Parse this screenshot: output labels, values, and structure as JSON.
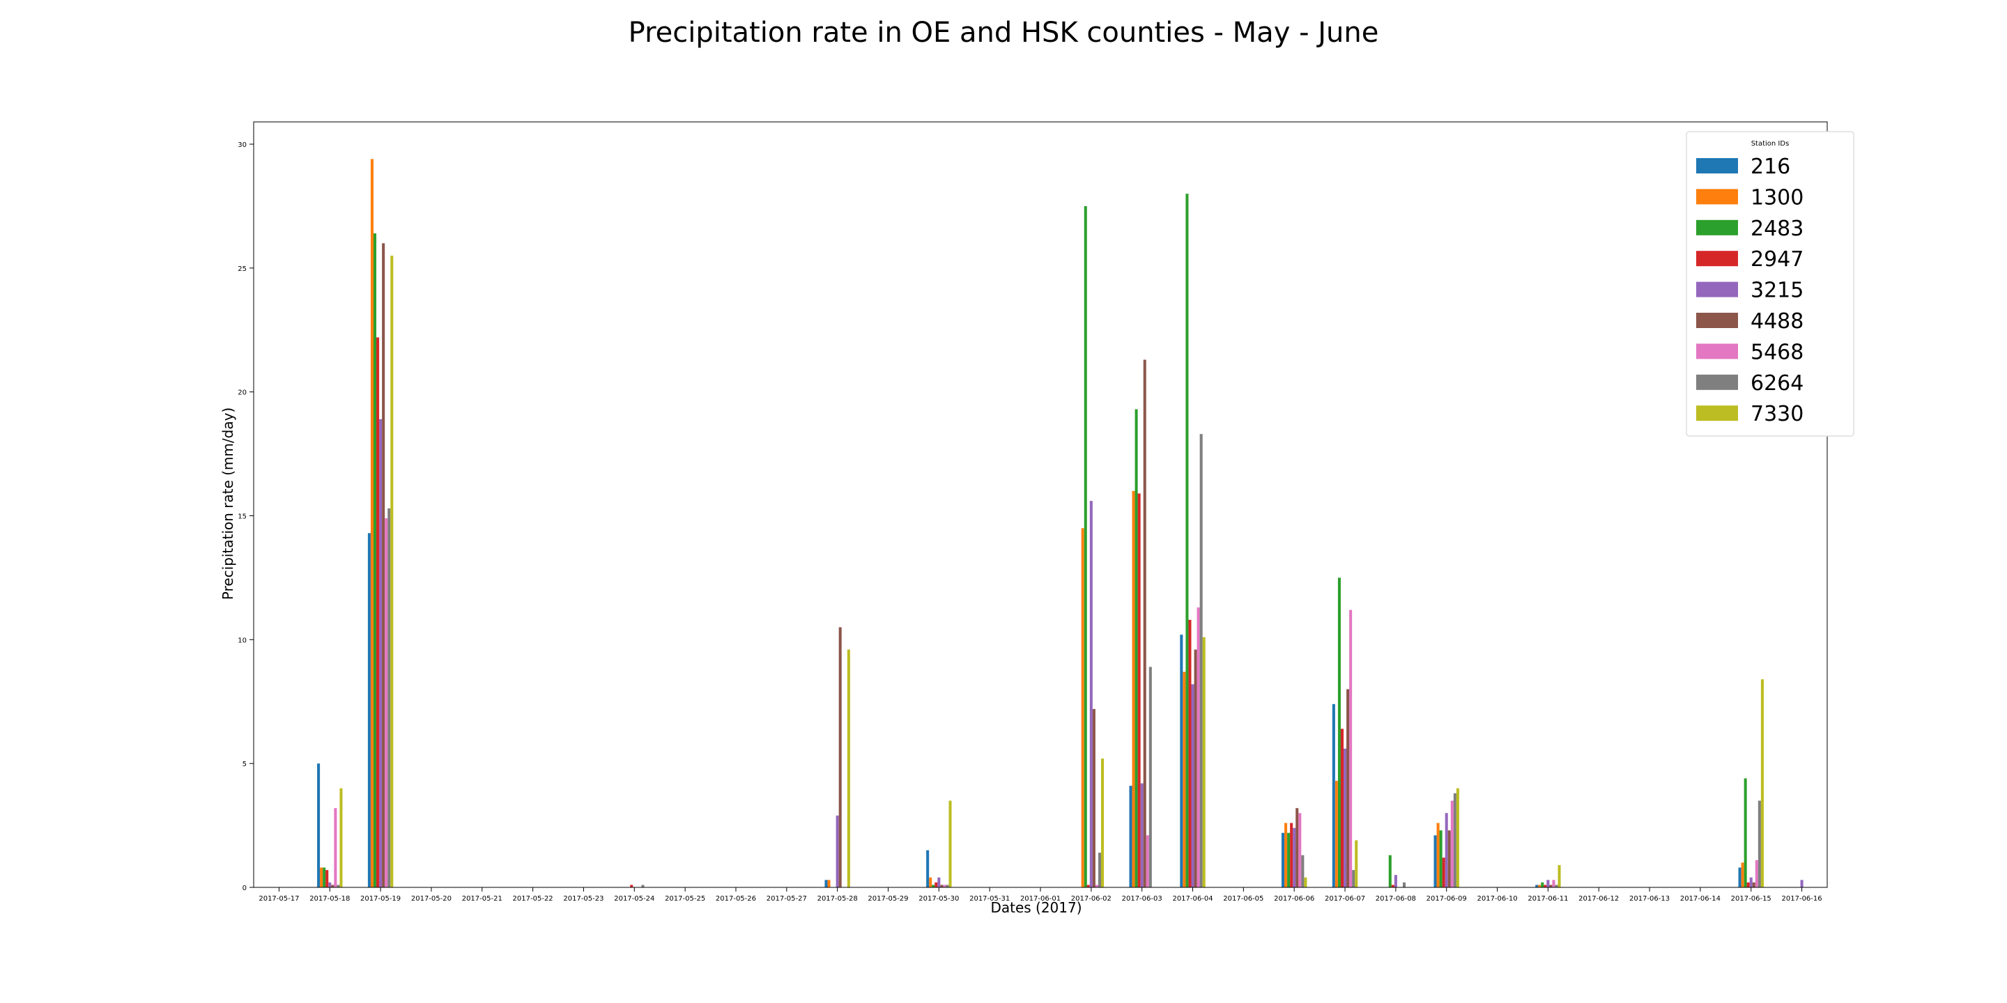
{
  "chart_data": {
    "type": "bar",
    "title": "Precipitation rate in OE and HSK counties - May - June",
    "xlabel": "Dates (2017)",
    "ylabel": "Precipitation rate (mm/day)",
    "ylim": [
      0,
      30.9
    ],
    "yticks": [
      0,
      5,
      10,
      15,
      20,
      25,
      30
    ],
    "grid": false,
    "legend": {
      "title": "Station IDs",
      "placement": "top-right"
    },
    "categories": [
      "2017-05-17",
      "2017-05-18",
      "2017-05-19",
      "2017-05-20",
      "2017-05-21",
      "2017-05-22",
      "2017-05-23",
      "2017-05-24",
      "2017-05-25",
      "2017-05-26",
      "2017-05-27",
      "2017-05-28",
      "2017-05-29",
      "2017-05-30",
      "2017-05-31",
      "2017-06-01",
      "2017-06-02",
      "2017-06-03",
      "2017-06-04",
      "2017-06-05",
      "2017-06-06",
      "2017-06-07",
      "2017-06-08",
      "2017-06-09",
      "2017-06-10",
      "2017-06-11",
      "2017-06-12",
      "2017-06-13",
      "2017-06-14",
      "2017-06-15",
      "2017-06-16"
    ],
    "series": [
      {
        "name": "216",
        "color": "#1f77b4",
        "values": [
          0,
          5.0,
          14.3,
          0,
          0,
          0,
          0,
          0,
          0,
          0,
          0,
          0.3,
          0,
          1.5,
          0,
          0,
          0,
          4.1,
          10.2,
          0,
          2.2,
          7.4,
          0,
          2.1,
          0,
          0.1,
          0,
          0,
          0,
          0.8,
          0
        ]
      },
      {
        "name": "1300",
        "color": "#ff7f0e",
        "values": [
          0,
          0.8,
          29.4,
          0,
          0,
          0,
          0,
          0,
          0,
          0,
          0,
          0.3,
          0,
          0.4,
          0,
          0,
          14.5,
          16.0,
          8.7,
          0,
          2.6,
          4.3,
          0,
          2.6,
          0,
          0.1,
          0,
          0,
          0,
          1.0,
          0
        ]
      },
      {
        "name": "2483",
        "color": "#2ca02c",
        "values": [
          0,
          0.8,
          26.4,
          0,
          0,
          0,
          0,
          0,
          0,
          0,
          0,
          0,
          0,
          0.1,
          0,
          0,
          27.5,
          19.3,
          28.0,
          0,
          2.2,
          12.5,
          1.3,
          2.3,
          0,
          0.2,
          0,
          0,
          0,
          4.4,
          0
        ]
      },
      {
        "name": "2947",
        "color": "#d62728",
        "values": [
          0,
          0.7,
          22.2,
          0,
          0,
          0,
          0,
          0.1,
          0,
          0,
          0,
          0,
          0,
          0.2,
          0,
          0,
          0.1,
          15.9,
          10.8,
          0,
          2.6,
          6.4,
          0.1,
          1.2,
          0,
          0.1,
          0,
          0,
          0,
          0.2,
          0
        ]
      },
      {
        "name": "3215",
        "color": "#9467bd",
        "values": [
          0,
          0.2,
          18.9,
          0,
          0,
          0,
          0,
          0,
          0,
          0,
          0,
          2.9,
          0,
          0.4,
          0,
          0,
          15.6,
          4.2,
          8.2,
          0,
          2.4,
          5.6,
          0.5,
          3.0,
          0,
          0.3,
          0,
          0,
          0,
          0.4,
          0.3
        ]
      },
      {
        "name": "4488",
        "color": "#8c564b",
        "values": [
          0,
          0.1,
          26.0,
          0,
          0,
          0,
          0,
          0,
          0,
          0,
          0,
          10.5,
          0,
          0.1,
          0,
          0,
          7.2,
          21.3,
          9.6,
          0,
          3.2,
          8.0,
          0,
          2.3,
          0,
          0.1,
          0,
          0,
          0,
          0.2,
          0
        ]
      },
      {
        "name": "5468",
        "color": "#e377c2",
        "values": [
          0,
          3.2,
          14.9,
          0,
          0,
          0,
          0,
          0,
          0,
          0,
          0,
          0,
          0,
          0.1,
          0,
          0,
          0.1,
          2.1,
          11.3,
          0,
          3.0,
          11.2,
          0,
          3.5,
          0,
          0.3,
          0,
          0,
          0,
          1.1,
          0
        ]
      },
      {
        "name": "6264",
        "color": "#7f7f7f",
        "values": [
          0,
          0.1,
          15.3,
          0,
          0,
          0,
          0,
          0.1,
          0,
          0,
          0,
          0,
          0,
          0.1,
          0,
          0,
          1.4,
          8.9,
          18.3,
          0,
          1.3,
          0.7,
          0.2,
          3.8,
          0,
          0.1,
          0,
          0,
          0,
          3.5,
          0
        ]
      },
      {
        "name": "7330",
        "color": "#bcbd22",
        "values": [
          0,
          4.0,
          25.5,
          0,
          0,
          0,
          0,
          0,
          0,
          0,
          0,
          9.6,
          0,
          3.5,
          0,
          0,
          5.2,
          0,
          10.1,
          0,
          0.4,
          1.9,
          0,
          4.0,
          0,
          0.9,
          0,
          0,
          0,
          8.4,
          0
        ]
      }
    ]
  }
}
